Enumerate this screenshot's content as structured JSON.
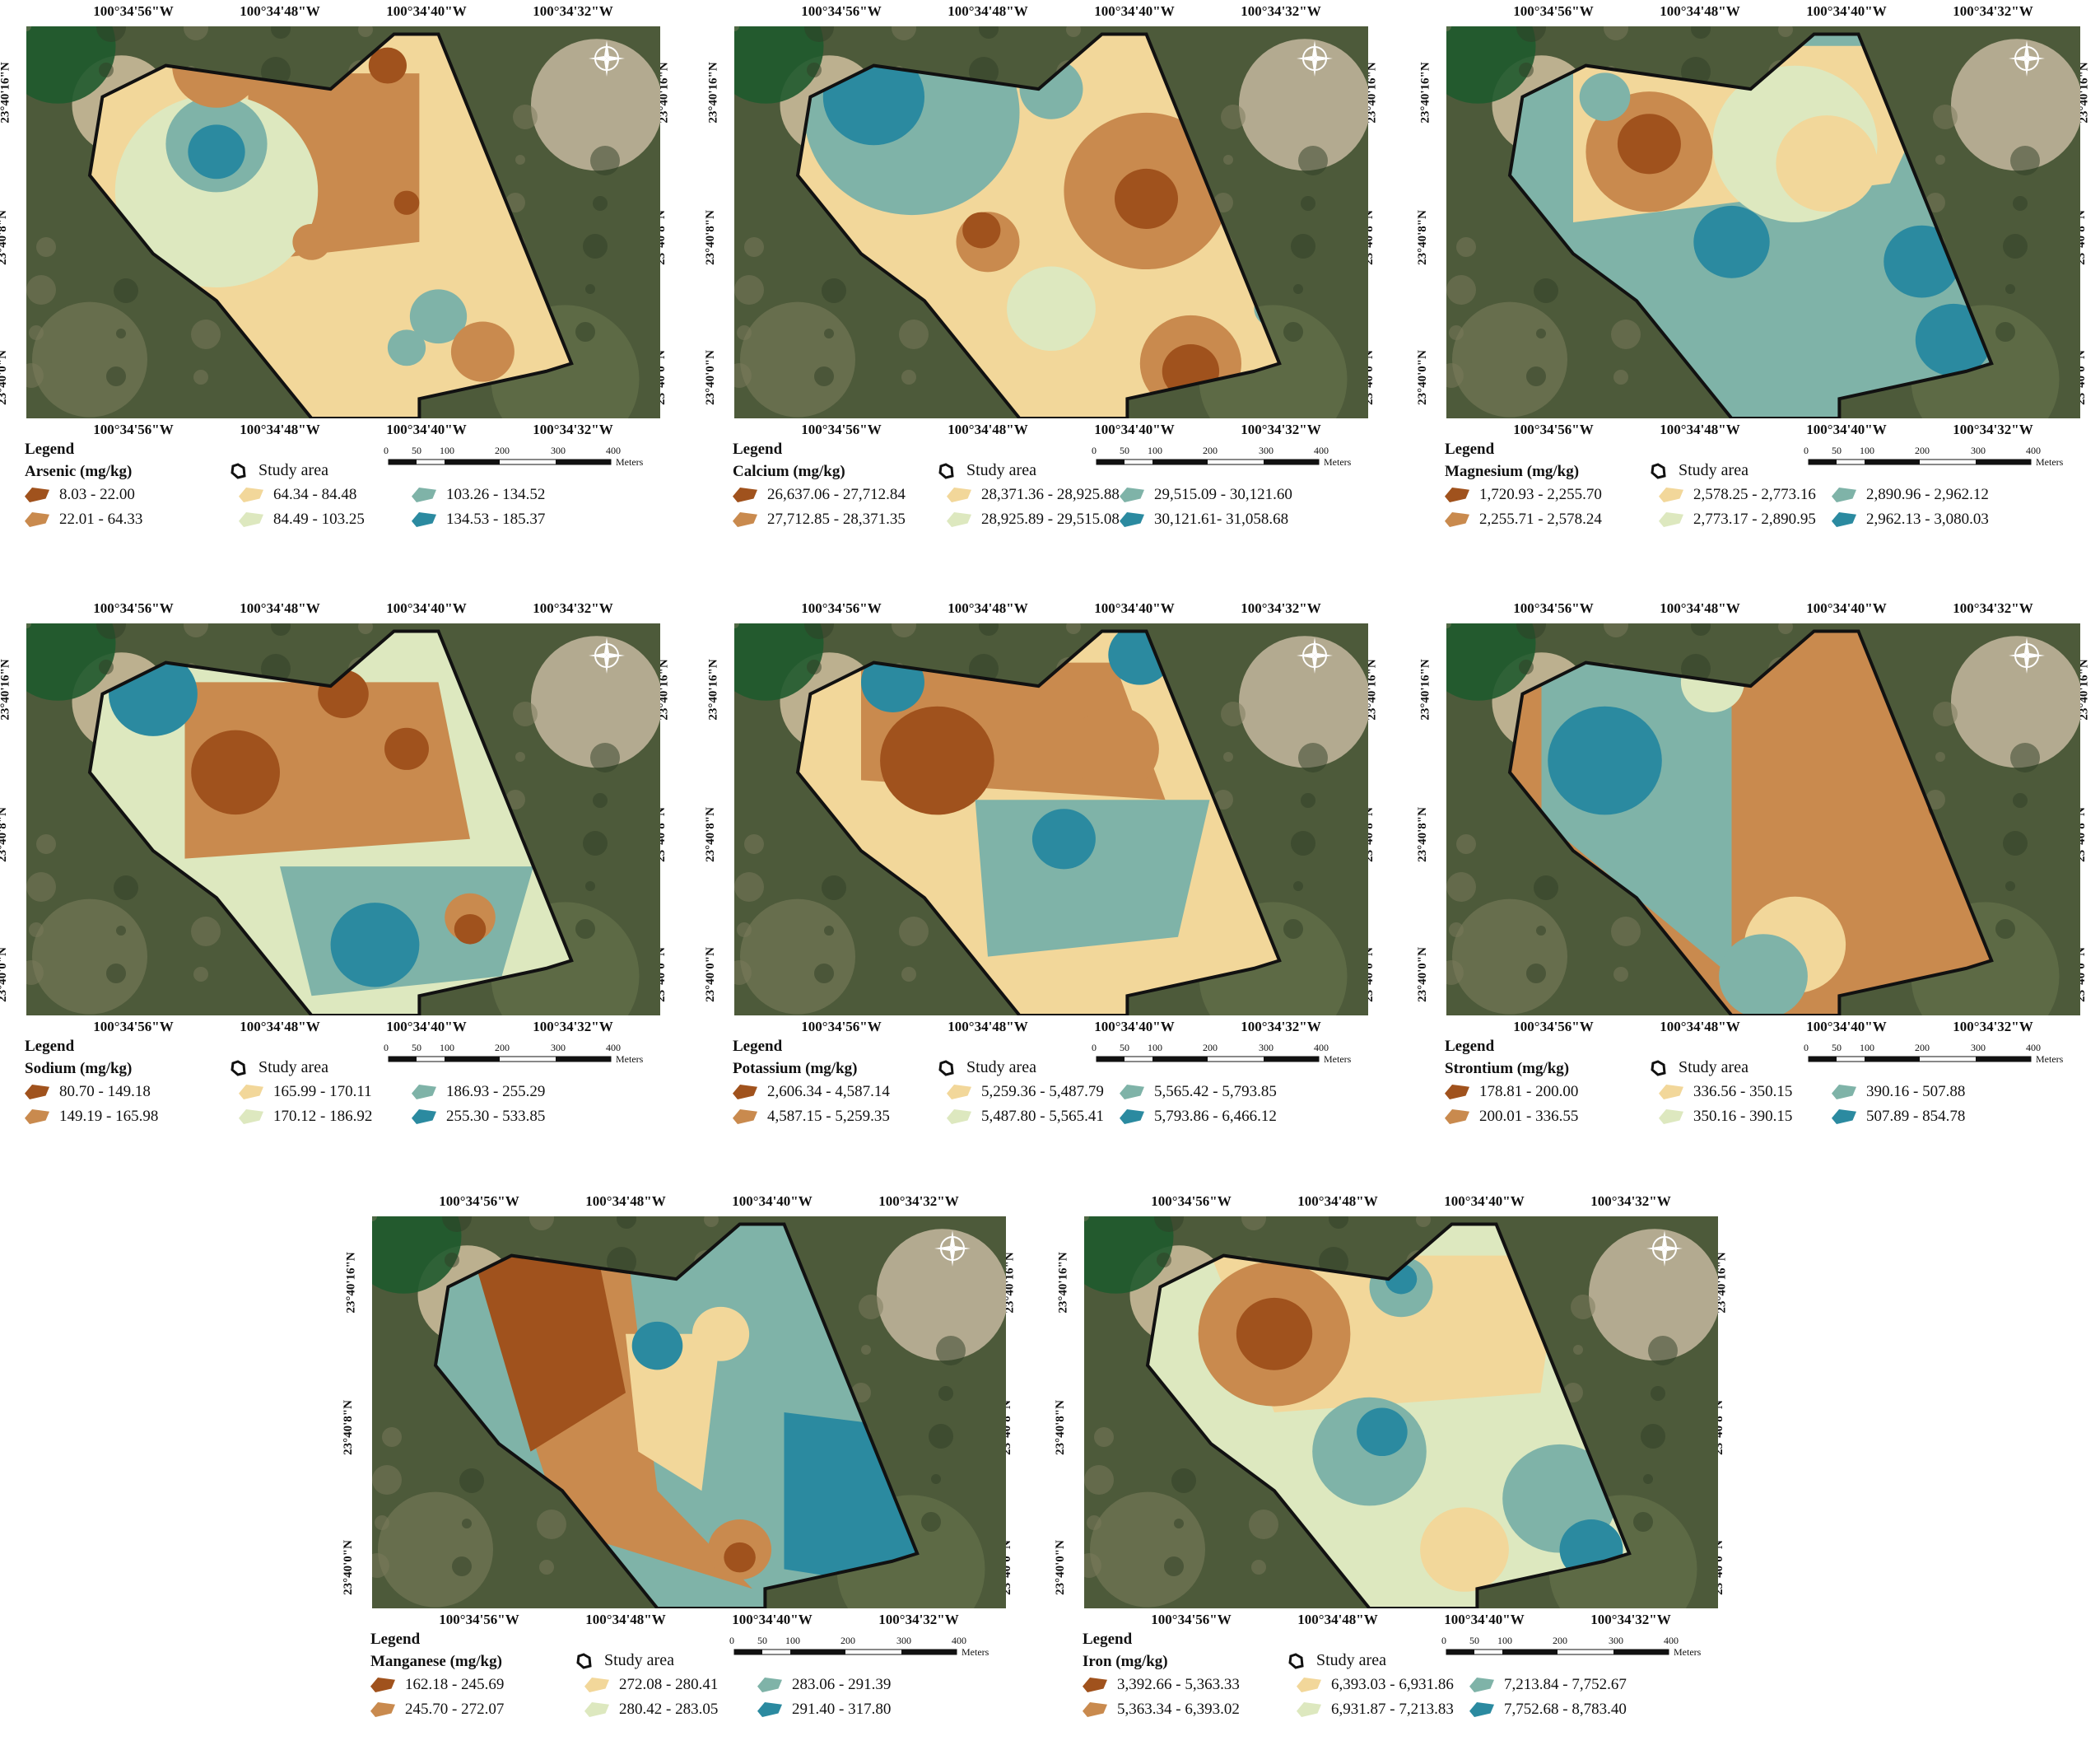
{
  "lon_labels": [
    "100°34'56\"W",
    "100°34'48\"W",
    "100°34'40\"W",
    "100°34'32\"W"
  ],
  "lat_labels": [
    "23°40'16\"N",
    "23°40'8\"N",
    "23°40'0\"N"
  ],
  "legend_word": "Legend",
  "study_area_label": "Study area",
  "scale_unit": "Meters",
  "scale_ticks": [
    "0",
    "50",
    "100",
    "200",
    "300",
    "400"
  ],
  "colors": {
    "c1": "#a0521d",
    "c2": "#c98a4e",
    "c3": "#f2d79a",
    "c4": "#dde8bf",
    "c5": "#7fb3a8",
    "c6": "#2b8aa0"
  },
  "panels": [
    {
      "title": "Arsenic (mg/kg)",
      "classes": [
        "8.03 - 22.00",
        "22.01 - 64.33",
        "64.34 - 84.48",
        "84.49 - 103.25",
        "103.26 - 134.52",
        "134.53 - 185.37"
      ]
    },
    {
      "title": "Calcium (mg/kg)",
      "classes": [
        "26,637.06 - 27,712.84",
        "27,712.85 - 28,371.35",
        "28,371.36 - 28,925.88",
        "28,925.89 - 29,515.08",
        "29,515.09 - 30,121.60",
        "30,121.61- 31,058.68"
      ]
    },
    {
      "title": "Magnesium (mg/kg)",
      "classes": [
        "1,720.93 - 2,255.70",
        "2,255.71 - 2,578.24",
        "2,578.25 - 2,773.16",
        "2,773.17 - 2,890.95",
        "2,890.96 - 2,962.12",
        "2,962.13 - 3,080.03"
      ]
    },
    {
      "title": "Sodium (mg/kg)",
      "classes": [
        "80.70 - 149.18",
        "149.19 - 165.98",
        "165.99 - 170.11",
        "170.12 - 186.92",
        "186.93 - 255.29",
        "255.30 - 533.85"
      ]
    },
    {
      "title": "Potassium (mg/kg)",
      "classes": [
        "2,606.34 - 4,587.14",
        "4,587.15 - 5,259.35",
        "5,259.36 - 5,487.79",
        "5,487.80 - 5,565.41",
        "5,565.42 - 5,793.85",
        "5,793.86 - 6,466.12"
      ]
    },
    {
      "title": "Strontium (mg/kg)",
      "classes": [
        "178.81 - 200.00",
        "200.01 - 336.55",
        "336.56 - 350.15",
        "350.16 - 390.15",
        "390.16 - 507.88",
        "507.89 - 854.78"
      ]
    },
    {
      "title": "Manganese (mg/kg)",
      "classes": [
        "162.18 - 245.69",
        "245.70 - 272.07",
        "272.08 - 280.41",
        "280.42 - 283.05",
        "283.06 - 291.39",
        "291.40 - 317.80"
      ]
    },
    {
      "title": "Iron (mg/kg)",
      "classes": [
        "3,392.66 - 5,363.33",
        "5,363.34 - 6,393.02",
        "6,393.03 - 6,931.86",
        "6,931.87 - 7,213.83",
        "7,213.84 - 7,752.67",
        "7,752.68 - 8,783.40"
      ]
    }
  ],
  "maps": [
    {
      "base": "c3",
      "blobs": [
        [
          "c2",
          "polygon",
          [
            [
              0.35,
              0.12
            ],
            [
              0.62,
              0.12
            ],
            [
              0.62,
              0.55
            ],
            [
              0.35,
              0.6
            ]
          ]
        ],
        [
          "c4",
          "circle",
          [
            0.3,
            0.42,
            0.16
          ]
        ],
        [
          "c5",
          "circle",
          [
            0.3,
            0.3,
            0.08
          ]
        ],
        [
          "c6",
          "circle",
          [
            0.3,
            0.32,
            0.045
          ]
        ],
        [
          "c2",
          "circle",
          [
            0.3,
            0.1,
            0.07
          ]
        ],
        [
          "c5",
          "circle",
          [
            0.65,
            0.74,
            0.045
          ]
        ],
        [
          "c5",
          "circle",
          [
            0.6,
            0.82,
            0.03
          ]
        ],
        [
          "c2",
          "circle",
          [
            0.45,
            0.55,
            0.03
          ]
        ],
        [
          "c2",
          "circle",
          [
            0.72,
            0.83,
            0.05
          ]
        ],
        [
          "c1",
          "circle",
          [
            0.6,
            0.45,
            0.02
          ]
        ],
        [
          "c1",
          "circle",
          [
            0.57,
            0.1,
            0.03
          ]
        ]
      ]
    },
    {
      "base": "c3",
      "blobs": [
        [
          "c5",
          "circle",
          [
            0.28,
            0.22,
            0.17
          ]
        ],
        [
          "c6",
          "circle",
          [
            0.22,
            0.18,
            0.08
          ]
        ],
        [
          "c2",
          "circle",
          [
            0.65,
            0.42,
            0.13
          ]
        ],
        [
          "c1",
          "circle",
          [
            0.65,
            0.44,
            0.05
          ]
        ],
        [
          "c2",
          "circle",
          [
            0.4,
            0.55,
            0.05
          ]
        ],
        [
          "c1",
          "circle",
          [
            0.39,
            0.52,
            0.03
          ]
        ],
        [
          "c4",
          "circle",
          [
            0.5,
            0.72,
            0.07
          ]
        ],
        [
          "c2",
          "circle",
          [
            0.72,
            0.86,
            0.08
          ]
        ],
        [
          "c1",
          "circle",
          [
            0.72,
            0.88,
            0.045
          ]
        ],
        [
          "c5",
          "circle",
          [
            0.5,
            0.16,
            0.05
          ]
        ],
        [
          "c5",
          "circle",
          [
            0.85,
            0.72,
            0.03
          ]
        ]
      ]
    },
    {
      "base": "c5",
      "blobs": [
        [
          "c3",
          "polygon",
          [
            [
              0.2,
              0.05
            ],
            [
              0.8,
              0.05
            ],
            [
              0.7,
              0.4
            ],
            [
              0.2,
              0.5
            ]
          ]
        ],
        [
          "c4",
          "circle",
          [
            0.55,
            0.3,
            0.13
          ]
        ],
        [
          "c3",
          "circle",
          [
            0.6,
            0.35,
            0.08
          ]
        ],
        [
          "c2",
          "circle",
          [
            0.32,
            0.32,
            0.1
          ]
        ],
        [
          "c1",
          "circle",
          [
            0.32,
            0.3,
            0.05
          ]
        ],
        [
          "c6",
          "circle",
          [
            0.45,
            0.55,
            0.06
          ]
        ],
        [
          "c6",
          "circle",
          [
            0.75,
            0.6,
            0.06
          ]
        ],
        [
          "c6",
          "circle",
          [
            0.8,
            0.8,
            0.06
          ]
        ],
        [
          "c5",
          "circle",
          [
            0.25,
            0.18,
            0.04
          ]
        ]
      ]
    },
    {
      "base": "c4",
      "blobs": [
        [
          "c2",
          "polygon",
          [
            [
              0.25,
              0.15
            ],
            [
              0.65,
              0.15
            ],
            [
              0.7,
              0.55
            ],
            [
              0.25,
              0.6
            ]
          ]
        ],
        [
          "c1",
          "circle",
          [
            0.33,
            0.38,
            0.07
          ]
        ],
        [
          "c1",
          "circle",
          [
            0.5,
            0.18,
            0.04
          ]
        ],
        [
          "c1",
          "circle",
          [
            0.6,
            0.32,
            0.035
          ]
        ],
        [
          "c5",
          "polygon",
          [
            [
              0.4,
              0.62
            ],
            [
              0.8,
              0.62
            ],
            [
              0.75,
              0.9
            ],
            [
              0.45,
              0.95
            ]
          ]
        ],
        [
          "c6",
          "circle",
          [
            0.55,
            0.82,
            0.07
          ]
        ],
        [
          "c6",
          "circle",
          [
            0.2,
            0.18,
            0.07
          ]
        ],
        [
          "c2",
          "circle",
          [
            0.7,
            0.75,
            0.04
          ]
        ],
        [
          "c1",
          "circle",
          [
            0.7,
            0.78,
            0.025
          ]
        ]
      ]
    },
    {
      "base": "c3",
      "blobs": [
        [
          "c2",
          "polygon",
          [
            [
              0.2,
              0.1
            ],
            [
              0.6,
              0.1
            ],
            [
              0.68,
              0.45
            ],
            [
              0.2,
              0.4
            ]
          ]
        ],
        [
          "c1",
          "circle",
          [
            0.32,
            0.35,
            0.09
          ]
        ],
        [
          "c5",
          "polygon",
          [
            [
              0.38,
              0.45
            ],
            [
              0.75,
              0.45
            ],
            [
              0.7,
              0.8
            ],
            [
              0.4,
              0.85
            ]
          ]
        ],
        [
          "c6",
          "circle",
          [
            0.52,
            0.55,
            0.05
          ]
        ],
        [
          "c6",
          "circle",
          [
            0.25,
            0.15,
            0.05
          ]
        ],
        [
          "c6",
          "circle",
          [
            0.64,
            0.08,
            0.05
          ]
        ],
        [
          "c1",
          "circle",
          [
            0.6,
            0.3,
            0.03
          ]
        ],
        [
          "c2",
          "circle",
          [
            0.6,
            0.32,
            0.07
          ]
        ]
      ]
    },
    {
      "base": "c2",
      "blobs": [
        [
          "c5",
          "polygon",
          [
            [
              0.15,
              0.1
            ],
            [
              0.45,
              0.1
            ],
            [
              0.45,
              0.9
            ],
            [
              0.15,
              0.5
            ]
          ]
        ],
        [
          "c6",
          "circle",
          [
            0.25,
            0.35,
            0.09
          ]
        ],
        [
          "c3",
          "circle",
          [
            0.55,
            0.82,
            0.08
          ]
        ],
        [
          "c5",
          "circle",
          [
            0.5,
            0.9,
            0.07
          ]
        ],
        [
          "c4",
          "circle",
          [
            0.42,
            0.15,
            0.05
          ]
        ],
        [
          "c1",
          "circle",
          [
            0.72,
            0.08,
            0.03
          ]
        ],
        [
          "c1",
          "circle",
          [
            0.78,
            0.47,
            0.02
          ]
        ]
      ]
    },
    {
      "base": "c5",
      "blobs": [
        [
          "c2",
          "polygon",
          [
            [
              0.15,
              0.05
            ],
            [
              0.4,
              0.05
            ],
            [
              0.45,
              0.7
            ],
            [
              0.6,
              0.95
            ],
            [
              0.3,
              0.8
            ]
          ]
        ],
        [
          "c1",
          "polygon",
          [
            [
              0.15,
              0.05
            ],
            [
              0.35,
              0.05
            ],
            [
              0.4,
              0.45
            ],
            [
              0.25,
              0.6
            ]
          ]
        ],
        [
          "c3",
          "polygon",
          [
            [
              0.4,
              0.3
            ],
            [
              0.55,
              0.3
            ],
            [
              0.52,
              0.7
            ],
            [
              0.42,
              0.6
            ]
          ]
        ],
        [
          "c6",
          "polygon",
          [
            [
              0.65,
              0.5
            ],
            [
              0.9,
              0.55
            ],
            [
              0.85,
              0.95
            ],
            [
              0.65,
              0.9
            ]
          ]
        ],
        [
          "c3",
          "circle",
          [
            0.55,
            0.3,
            0.045
          ]
        ],
        [
          "c2",
          "circle",
          [
            0.58,
            0.85,
            0.05
          ]
        ],
        [
          "c1",
          "circle",
          [
            0.58,
            0.87,
            0.025
          ]
        ],
        [
          "c6",
          "circle",
          [
            0.45,
            0.33,
            0.04
          ]
        ]
      ]
    },
    {
      "base": "c4",
      "blobs": [
        [
          "c3",
          "polygon",
          [
            [
              0.2,
              0.1
            ],
            [
              0.75,
              0.1
            ],
            [
              0.72,
              0.45
            ],
            [
              0.3,
              0.5
            ]
          ]
        ],
        [
          "c2",
          "circle",
          [
            0.3,
            0.3,
            0.12
          ]
        ],
        [
          "c1",
          "circle",
          [
            0.3,
            0.3,
            0.06
          ]
        ],
        [
          "c5",
          "circle",
          [
            0.45,
            0.6,
            0.09
          ]
        ],
        [
          "c6",
          "circle",
          [
            0.47,
            0.55,
            0.04
          ]
        ],
        [
          "c5",
          "circle",
          [
            0.75,
            0.72,
            0.09
          ]
        ],
        [
          "c6",
          "circle",
          [
            0.8,
            0.85,
            0.05
          ]
        ],
        [
          "c3",
          "circle",
          [
            0.6,
            0.85,
            0.07
          ]
        ],
        [
          "c5",
          "circle",
          [
            0.5,
            0.18,
            0.05
          ]
        ],
        [
          "c6",
          "circle",
          [
            0.5,
            0.16,
            0.025
          ]
        ]
      ]
    }
  ]
}
